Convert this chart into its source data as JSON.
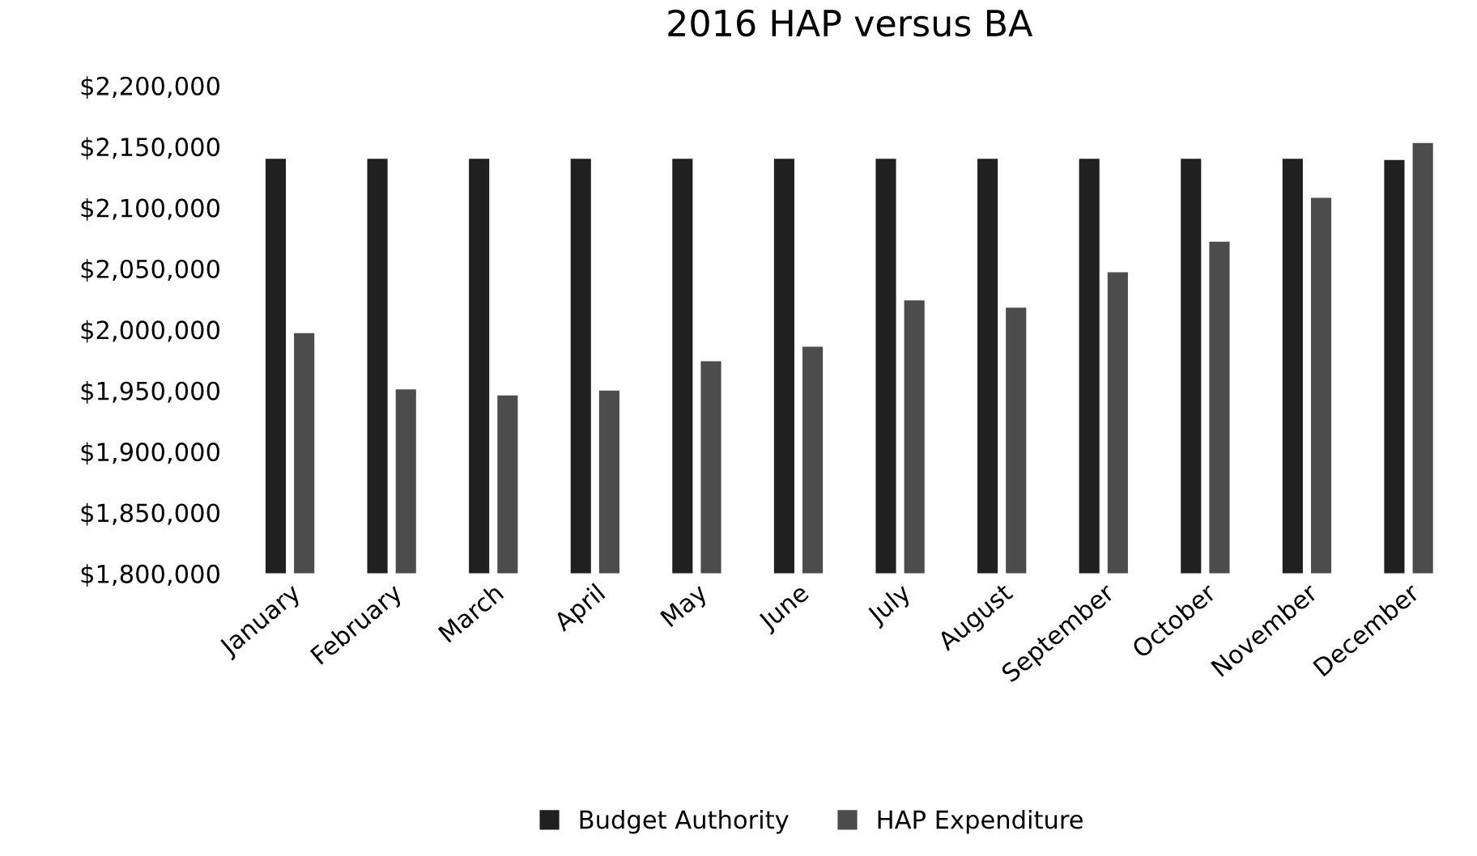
{
  "chart_data": {
    "type": "bar",
    "title": "2016 HAP versus BA",
    "categories": [
      "January",
      "February",
      "March",
      "April",
      "May",
      "June",
      "July",
      "August",
      "September",
      "October",
      "November",
      "December"
    ],
    "series": [
      {
        "name": "Budget Authority",
        "color": "#202020",
        "values": [
          2140000,
          2140000,
          2140000,
          2140000,
          2140000,
          2140000,
          2140000,
          2140000,
          2140000,
          2140000,
          2140000,
          2139000
        ]
      },
      {
        "name": "HAP Expenditure",
        "color": "#4c4c4c",
        "values": [
          1997000,
          1951000,
          1946000,
          1950000,
          1974000,
          1986000,
          2024000,
          2018000,
          2047000,
          2072000,
          2108000,
          2153000
        ]
      }
    ],
    "ylim": [
      1800000,
      2200000
    ],
    "yticks": [
      {
        "value": 1800000,
        "label": "$1,800,000"
      },
      {
        "value": 1850000,
        "label": "$1,850,000"
      },
      {
        "value": 1900000,
        "label": "$1,900,000"
      },
      {
        "value": 1950000,
        "label": "$1,950,000"
      },
      {
        "value": 2000000,
        "label": "$2,000,000"
      },
      {
        "value": 2050000,
        "label": "$2,050,000"
      },
      {
        "value": 2100000,
        "label": "$2,100,000"
      },
      {
        "value": 2150000,
        "label": "$2,150,000"
      },
      {
        "value": 2200000,
        "label": "$2,200,000"
      }
    ],
    "grid": false,
    "legend": "bottom"
  }
}
